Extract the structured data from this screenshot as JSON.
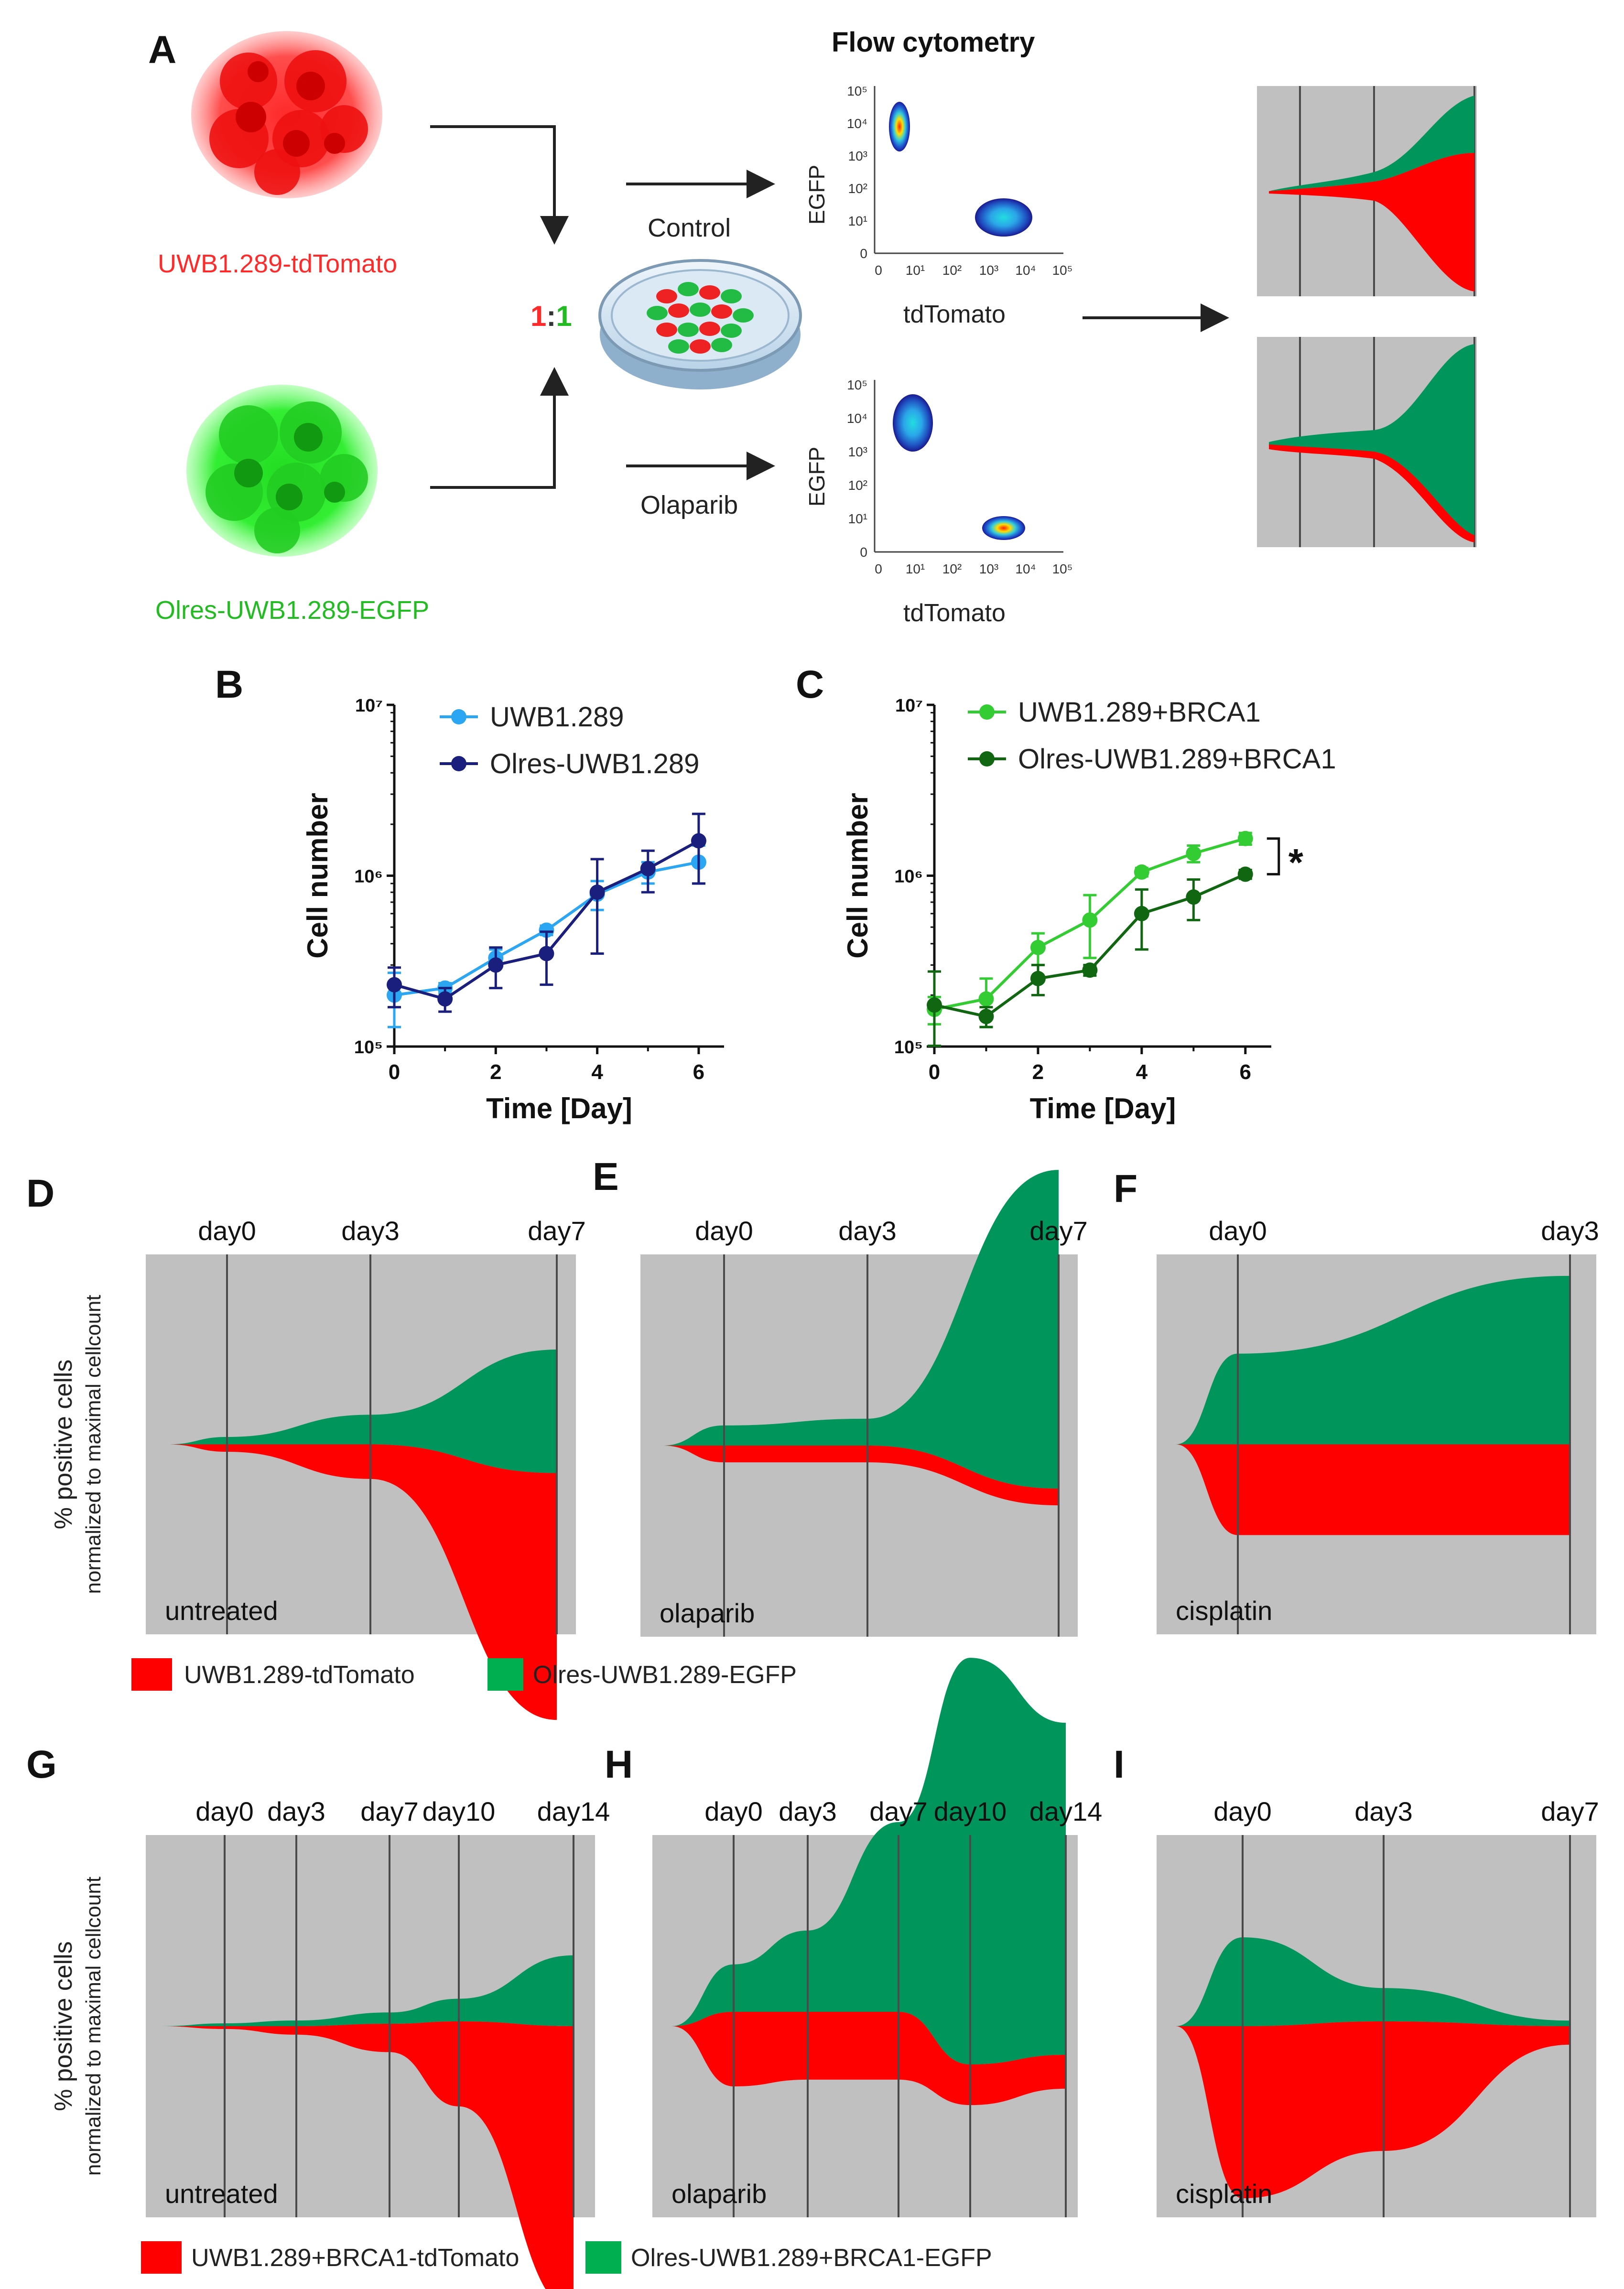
{
  "colors": {
    "tomato": "#ff0000",
    "egfp": "#00955a",
    "plot_bg": "#c0c0c0",
    "vline": "#4a4a4a",
    "light_blue": "#2aa6f2",
    "dark_blue": "#1a1f7e",
    "light_green": "#33cc33",
    "dark_green": "#116611"
  },
  "panel_labels": {
    "a": "A",
    "b": "B",
    "c": "C",
    "d": "D",
    "e": "E",
    "f": "F",
    "g": "G",
    "h": "H",
    "i": "I"
  },
  "panel_a": {
    "flow_title": "Flow cytometry",
    "tomato_label": "UWB1.289-tdTomato",
    "egfp_label": "Olres-UWB1.289-EGFP",
    "ratio_left": "1",
    "ratio_sep": ":",
    "ratio_right": "1",
    "control_label": "Control",
    "olaparib_label": "Olaparib",
    "egfp_axis": "EGFP",
    "tdtomato_axis": "tdTomato",
    "log_ticks": [
      "0",
      "10¹",
      "10²",
      "10³",
      "10⁴",
      "10⁵"
    ]
  },
  "chart_data": [
    {
      "panel": "B",
      "type": "line",
      "title": "",
      "xlabel": "Time [Day]",
      "ylabel": "Cell number",
      "x_ticks": [
        "0",
        "2",
        "4",
        "6"
      ],
      "y_tick_labels": [
        "10⁵",
        "10⁶",
        "10⁷"
      ],
      "yscale": "log",
      "xlim": [
        0,
        6.5
      ],
      "ylim": [
        100000,
        10000000
      ],
      "series": [
        {
          "name": "UWB1.289",
          "color": "#2aa6f2",
          "x": [
            0,
            1,
            2,
            3,
            4,
            5,
            6
          ],
          "values": [
            200000,
            220000,
            330000,
            480000,
            780000,
            1050000,
            1200000
          ],
          "err": [
            70000,
            15000,
            40000,
            30000,
            150000,
            150000,
            300000
          ]
        },
        {
          "name": "Olres-UWB1.289",
          "color": "#1a1f7e",
          "x": [
            0,
            1,
            2,
            3,
            4,
            5,
            6
          ],
          "values": [
            230000,
            190000,
            300000,
            350000,
            800000,
            1100000,
            1600000
          ],
          "err": [
            60000,
            30000,
            80000,
            120000,
            450000,
            300000,
            700000
          ]
        }
      ]
    },
    {
      "panel": "C",
      "type": "line",
      "title": "",
      "xlabel": "Time [Day]",
      "ylabel": "Cell number",
      "x_ticks": [
        "0",
        "2",
        "4",
        "6"
      ],
      "y_tick_labels": [
        "10⁵",
        "10⁶",
        "10⁷"
      ],
      "yscale": "log",
      "xlim": [
        0,
        6.5
      ],
      "ylim": [
        100000,
        10000000
      ],
      "significance": "*",
      "series": [
        {
          "name": "UWB1.289+BRCA1",
          "color": "#33cc33",
          "x": [
            0,
            1,
            2,
            3,
            4,
            5,
            6
          ],
          "values": [
            165000,
            190000,
            380000,
            550000,
            1050000,
            1350000,
            1650000
          ],
          "err": [
            30000,
            60000,
            80000,
            220000,
            60000,
            150000,
            130000
          ]
        },
        {
          "name": "Olres-UWB1.289+BRCA1",
          "color": "#116611",
          "x": [
            0,
            1,
            2,
            3,
            4,
            5,
            6
          ],
          "values": [
            175000,
            150000,
            250000,
            280000,
            600000,
            750000,
            1020000
          ],
          "err": [
            100000,
            20000,
            50000,
            20000,
            230000,
            200000,
            60000
          ]
        }
      ]
    },
    {
      "panel": "D",
      "type": "area",
      "treatment": "untreated",
      "ylabel": "% positive cells",
      "ylabel2": "normalized to maximal cellcount",
      "day_labels": [
        "day0",
        "day3",
        "day7"
      ],
      "x": [
        0,
        3,
        7
      ],
      "series": [
        {
          "name": "UWB1.289-tdTomato",
          "color": "#ff0000",
          "values": [
            3,
            14,
            100
          ]
        },
        {
          "name": "Olres-UWB1.289-EGFP",
          "color": "#00955a",
          "values": [
            3,
            12,
            50
          ]
        }
      ]
    },
    {
      "panel": "E",
      "type": "area",
      "treatment": "olaparib",
      "day_labels": [
        "day0",
        "day3",
        "day7"
      ],
      "x": [
        0,
        3,
        7
      ],
      "series": [
        {
          "name": "UWB1.289-tdTomato",
          "color": "#ff0000",
          "values": [
            5,
            5,
            5
          ]
        },
        {
          "name": "Olres-UWB1.289-EGFP",
          "color": "#00955a",
          "values": [
            6,
            8,
            95
          ]
        }
      ]
    },
    {
      "panel": "F",
      "type": "area",
      "treatment": "cisplatin",
      "day_labels": [
        "day0",
        "day3"
      ],
      "x": [
        0,
        3
      ],
      "series": [
        {
          "name": "UWB1.289-tdTomato",
          "color": "#ff0000",
          "values": [
            35,
            35
          ]
        },
        {
          "name": "Olres-UWB1.289-EGFP",
          "color": "#00955a",
          "values": [
            35,
            65
          ]
        }
      ]
    },
    {
      "panel": "G",
      "type": "area",
      "treatment": "untreated",
      "ylabel": "% positive cells",
      "ylabel2": "normalized to maximal cellcount",
      "day_labels": [
        "day0",
        "day3",
        "day7",
        "day10",
        "day14"
      ],
      "x": [
        0,
        3,
        7,
        10,
        14
      ],
      "series": [
        {
          "name": "UWB1.289+BRCA1-tdTomato",
          "color": "#ff0000",
          "values": [
            1,
            3,
            10,
            30,
            100
          ]
        },
        {
          "name": "Olres-UWB1.289+BRCA1-EGFP",
          "color": "#00955a",
          "values": [
            1,
            2,
            4,
            8,
            25
          ]
        }
      ]
    },
    {
      "panel": "H",
      "type": "area",
      "treatment": "olaparib",
      "day_labels": [
        "day0",
        "day3",
        "day7",
        "day10",
        "day14"
      ],
      "x": [
        0,
        3,
        7,
        10,
        14
      ],
      "series": [
        {
          "name": "UWB1.289+BRCA1-tdTomato",
          "color": "#ff0000",
          "values": [
            11,
            10,
            10,
            6,
            5
          ]
        },
        {
          "name": "Olres-UWB1.289+BRCA1-EGFP",
          "color": "#00955a",
          "values": [
            7,
            12,
            28,
            60,
            49
          ]
        }
      ]
    },
    {
      "panel": "I",
      "type": "area",
      "treatment": "cisplatin",
      "day_labels": [
        "day0",
        "day3",
        "day7"
      ],
      "x": [
        0,
        3,
        7
      ],
      "series": [
        {
          "name": "UWB1.289+BRCA1-tdTomato",
          "color": "#ff0000",
          "values": [
            93,
            70,
            10
          ]
        },
        {
          "name": "Olres-UWB1.289+BRCA1-EGFP",
          "color": "#00955a",
          "values": [
            48,
            18,
            3
          ]
        }
      ]
    }
  ],
  "legend_def": {
    "tomato": "UWB1.289-tdTomato",
    "egfp": "Olres-UWB1.289-EGFP"
  },
  "legend_ghi": {
    "tomato": "UWB1.289+BRCA1-tdTomato",
    "egfp": "Olres-UWB1.289+BRCA1-EGFP"
  }
}
